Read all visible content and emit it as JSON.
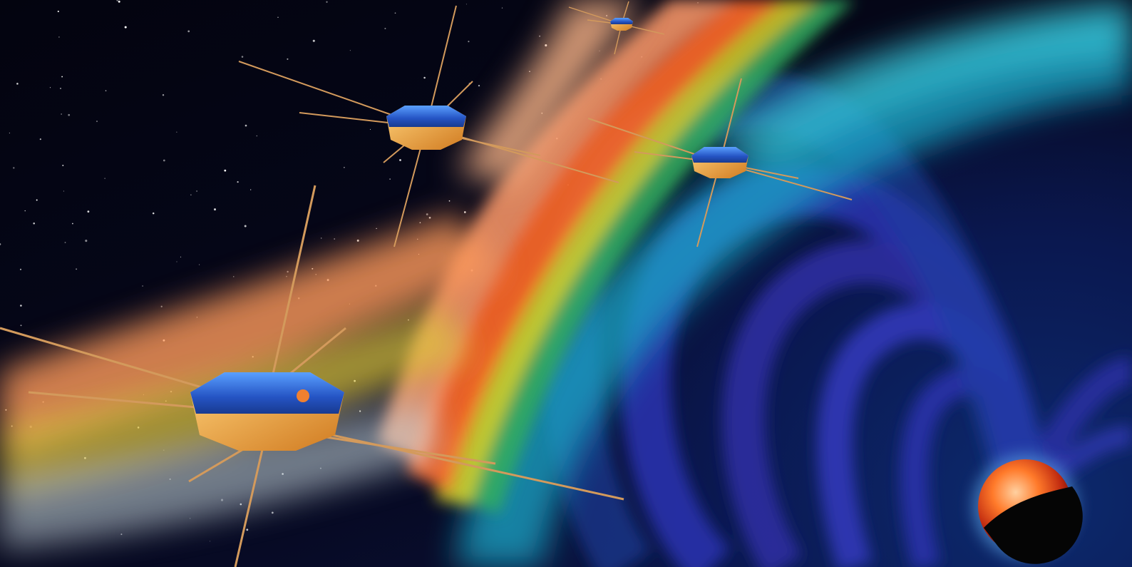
{
  "scene": {
    "palette": {
      "space": "#05061a",
      "field_lines": "#2a2fa8",
      "bow_shock_orange": "#ff7a3a",
      "bow_shock_yellow": "#d9d22a",
      "bow_shock_green": "#3fbf6a",
      "bow_shock_cyan": "#27b7d6",
      "spacecraft_body": "#2a5fd0",
      "spacecraft_base": "#f2a640",
      "boom": "#d39a5c",
      "earth_day": "#ff6a1a",
      "earth_night": "#050505"
    },
    "spacecraft_icons": [
      "spacecraft-icon",
      "spacecraft-icon",
      "spacecraft-icon",
      "spacecraft-icon"
    ],
    "planet_icon": "earth-icon"
  }
}
